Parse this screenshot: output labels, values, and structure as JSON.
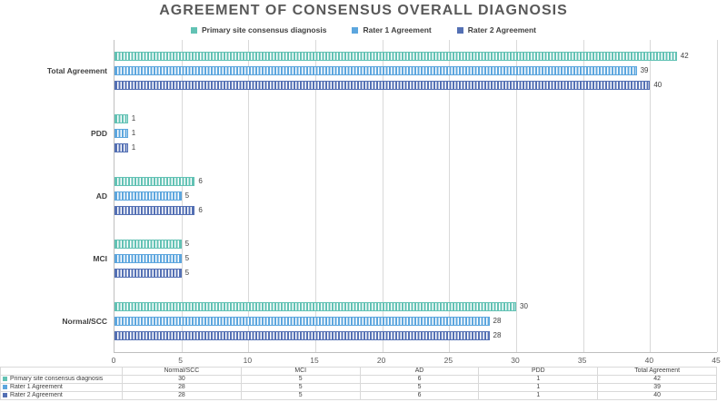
{
  "title": "AGREEMENT OF CONSENSUS OVERALL DIAGNOSIS",
  "chart_data": {
    "type": "bar",
    "orientation": "horizontal",
    "title": "AGREEMENT OF CONSENSUS OVERALL DIAGNOSIS",
    "categories": [
      "Total Agreement",
      "PDD",
      "AD",
      "MCI",
      "Normal/SCC"
    ],
    "series": [
      {
        "name": "Primary site consensus diagnosis",
        "color": "#62C2B4",
        "values": [
          42,
          1,
          6,
          5,
          30
        ]
      },
      {
        "name": "Rater 1 Agreement",
        "color": "#5CA6DE",
        "values": [
          39,
          1,
          5,
          5,
          28
        ]
      },
      {
        "name": "Rater 2 Agreement",
        "color": "#5470B4",
        "values": [
          40,
          1,
          6,
          5,
          28
        ]
      }
    ],
    "xlim": [
      0,
      45
    ],
    "xticks": [
      0,
      5,
      10,
      15,
      20,
      25,
      30,
      35,
      40,
      45
    ],
    "legend_position": "top",
    "grid": true,
    "bar_pattern": "vertical-stripes"
  },
  "data_table": {
    "header": [
      "",
      "Normal/SCC",
      "MCI",
      "AD",
      "PDD",
      "Total Agreement"
    ],
    "rows": [
      {
        "name": "Primary site consensus diagnosis",
        "color": "#62C2B4",
        "values": [
          "30",
          "5",
          "6",
          "1",
          "42"
        ]
      },
      {
        "name": "Rater 1 Agreement",
        "color": "#5CA6DE",
        "values": [
          "28",
          "5",
          "5",
          "1",
          "39"
        ]
      },
      {
        "name": "Rater 2 Agreement",
        "color": "#5470B4",
        "values": [
          "28",
          "5",
          "6",
          "1",
          "40"
        ]
      }
    ]
  }
}
